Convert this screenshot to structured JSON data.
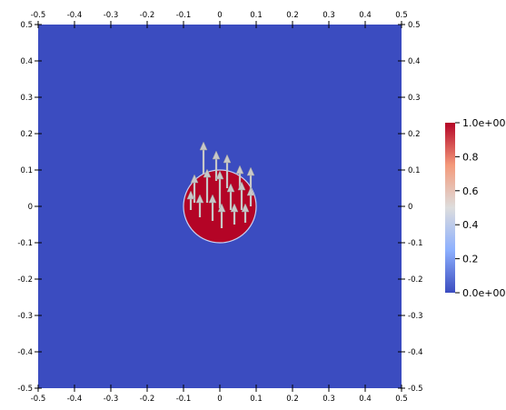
{
  "chart_data": {
    "type": "heatmap",
    "x_ticks": [
      -0.5,
      -0.4,
      -0.3,
      -0.2,
      -0.1,
      0,
      0.1,
      0.2,
      0.3,
      0.4,
      0.5
    ],
    "y_ticks": [
      0.5,
      0.4,
      0.3,
      0.2,
      0.1,
      0,
      -0.1,
      -0.2,
      -0.3,
      -0.4,
      -0.5
    ],
    "x_tick_labels": [
      "-0.5",
      "-0.4",
      "-0.3",
      "-0.2",
      "-0.1",
      "0",
      "0.1",
      "0.2",
      "0.3",
      "0.4",
      "0.5"
    ],
    "y_tick_labels": [
      "0.5",
      "0.4",
      "0.3",
      "0.2",
      "0.1",
      "0",
      "-0.1",
      "-0.2",
      "-0.3",
      "-0.4",
      "-0.5"
    ],
    "xlim": [
      -0.5,
      0.5
    ],
    "ylim": [
      -0.5,
      0.5
    ],
    "field": {
      "background_value": 0.0,
      "region": {
        "shape": "circle",
        "center": [
          0.0,
          0.0
        ],
        "radius": 0.1,
        "value": 1.0
      }
    },
    "colorbar": {
      "range": [
        0.0,
        1.0
      ],
      "tick_values": [
        1.0,
        0.8,
        0.6,
        0.4,
        0.2,
        0.0
      ],
      "tick_labels": [
        "1.0e+00",
        "0.8",
        "0.6",
        "0.4",
        "0.2",
        "0.0e+00"
      ],
      "colors": [
        "#3b4cc0",
        "#8db0fe",
        "#dddddd",
        "#f49a7b",
        "#b40426"
      ]
    },
    "vectors": {
      "direction": "up",
      "color": "#c8c8c8",
      "points": [
        {
          "x": -0.045,
          "y": 0.09,
          "len": 0.085
        },
        {
          "x": -0.01,
          "y": 0.07,
          "len": 0.08
        },
        {
          "x": 0.02,
          "y": 0.05,
          "len": 0.09
        },
        {
          "x": 0.055,
          "y": 0.05,
          "len": 0.06
        },
        {
          "x": 0.085,
          "y": 0.03,
          "len": 0.075
        },
        {
          "x": -0.07,
          "y": 0.01,
          "len": 0.075
        },
        {
          "x": -0.035,
          "y": 0.01,
          "len": 0.09
        },
        {
          "x": 0.0,
          "y": -0.005,
          "len": 0.1
        },
        {
          "x": 0.03,
          "y": -0.01,
          "len": 0.07
        },
        {
          "x": 0.06,
          "y": -0.01,
          "len": 0.075
        },
        {
          "x": -0.055,
          "y": -0.03,
          "len": 0.06
        },
        {
          "x": -0.02,
          "y": -0.04,
          "len": 0.07
        },
        {
          "x": 0.005,
          "y": -0.06,
          "len": 0.065
        },
        {
          "x": 0.04,
          "y": -0.05,
          "len": 0.055
        },
        {
          "x": 0.07,
          "y": -0.045,
          "len": 0.05
        },
        {
          "x": -0.08,
          "y": -0.01,
          "len": 0.05
        },
        {
          "x": 0.085,
          "y": 0.0,
          "len": 0.05
        }
      ]
    }
  }
}
